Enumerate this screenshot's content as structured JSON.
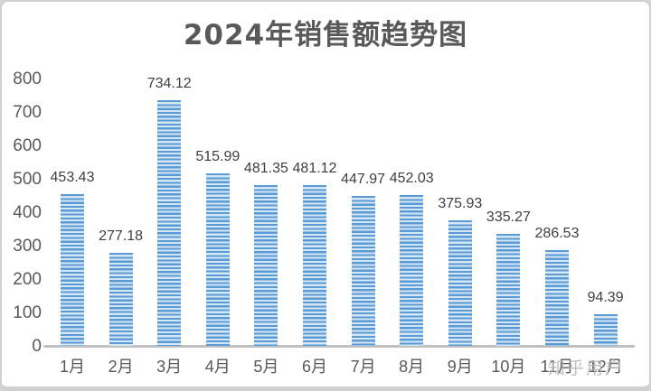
{
  "title": "2024年销售额趋势图",
  "watermark": "知乎用户",
  "chart_data": {
    "type": "bar",
    "title": "2024年销售额趋势图",
    "categories": [
      "1月",
      "2月",
      "3月",
      "4月",
      "5月",
      "6月",
      "7月",
      "8月",
      "9月",
      "10月",
      "11月",
      "12月"
    ],
    "values": [
      453.43,
      277.18,
      734.12,
      515.99,
      481.35,
      481.12,
      447.97,
      452.03,
      375.93,
      335.27,
      286.53,
      94.39
    ],
    "data_labels": [
      "453.43",
      "277.18",
      "734.12",
      "515.99",
      "481.35",
      "481.12",
      "447.97",
      "452.03",
      "375.93",
      "335.27",
      "286.53",
      "94.39"
    ],
    "xlabel": "",
    "ylabel": "",
    "ylim": [
      0,
      800
    ],
    "yticks": [
      0,
      100,
      200,
      300,
      400,
      500,
      600,
      700,
      800
    ],
    "grid": false,
    "legend_position": "none",
    "bar_fill_style": "horizontal-stripes",
    "bar_color": "#5b9bd5",
    "bar_stripe_light_color": "#d5e6f4",
    "axis_line_color": "#bfbfbf",
    "axis_label_color": "#595959",
    "data_label_color": "#3f3f3f",
    "title_color": "#595959",
    "background_color": "#ffffff"
  }
}
